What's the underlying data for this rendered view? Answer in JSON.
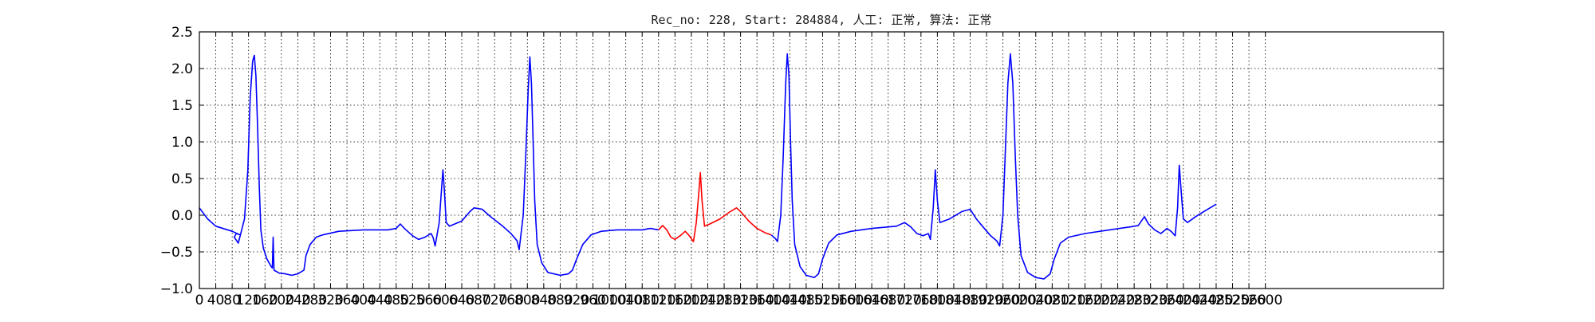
{
  "chart_data": {
    "type": "line",
    "title": "Rec_no: 228, Start: 284884, 人工: 正常, 算法: 正常",
    "xlabel": "",
    "ylabel": "",
    "xlim": [
      0,
      3000
    ],
    "ylim": [
      -1.0,
      2.5
    ],
    "grid": true,
    "y_ticks": [
      -1.0,
      -0.5,
      0.0,
      0.5,
      1.0,
      1.5,
      2.0,
      2.5
    ],
    "y_tick_labels": [
      "−1.0",
      "−0.5",
      "0.0",
      "0.5",
      "1.0",
      "1.5",
      "2.0",
      "2.5"
    ],
    "x_ticks": [
      0,
      40,
      80,
      120,
      160,
      200,
      240,
      280,
      320,
      360,
      400,
      440,
      480,
      520,
      560,
      600,
      640,
      680,
      720,
      760,
      800,
      840,
      880,
      920,
      960,
      1000,
      1040,
      1080,
      1120,
      1160,
      1200,
      1240,
      1280,
      1320,
      1360,
      1400,
      1440,
      1480,
      1520,
      1560,
      1600,
      1640,
      1680,
      1720,
      1760,
      1800,
      1840,
      1880,
      1920,
      1960,
      2000,
      2040,
      2080,
      2120,
      2160,
      2200,
      2240,
      2280,
      2320,
      2360,
      2400,
      2440,
      2480,
      2520,
      2560,
      2600
    ],
    "x_tick_labels": [
      "0",
      "40",
      "80",
      "120",
      "160",
      "200",
      "240",
      "280",
      "320",
      "360",
      "400",
      "440",
      "480",
      "520",
      "560",
      "600",
      "640",
      "680",
      "720",
      "760",
      "800",
      "840",
      "880",
      "920",
      "960",
      "1000",
      "1040",
      "1080",
      "1120",
      "1160",
      "1200",
      "1240",
      "1280",
      "1320",
      "1360",
      "1400",
      "1440",
      "1480",
      "1520",
      "1560",
      "1600",
      "1640",
      "1680",
      "1720",
      "1760",
      "1800",
      "1840",
      "1880",
      "1920",
      "1960",
      "2000",
      "2040",
      "2080",
      "2120",
      "2160",
      "2200",
      "2240",
      "2280",
      "2320",
      "2360",
      "2400",
      "2440",
      "2480",
      "2520",
      "2560",
      "2600"
    ],
    "series": [
      {
        "color": "#0000ff",
        "points": [
          [
            0,
            0.1
          ],
          [
            20,
            -0.05
          ],
          [
            40,
            -0.15
          ],
          [
            80,
            -0.22
          ],
          [
            100,
            -0.27
          ],
          [
            90,
            -0.25
          ],
          [
            85,
            -0.3
          ],
          [
            95,
            -0.38
          ],
          [
            110,
            -0.05
          ],
          [
            118,
            0.6
          ],
          [
            124,
            1.6
          ],
          [
            130,
            2.1
          ],
          [
            134,
            2.18
          ],
          [
            138,
            1.9
          ],
          [
            142,
            1.2
          ],
          [
            146,
            0.4
          ],
          [
            150,
            -0.2
          ],
          [
            156,
            -0.45
          ],
          [
            165,
            -0.6
          ],
          [
            175,
            -0.7
          ],
          [
            178,
            -0.72
          ],
          [
            180,
            -0.3
          ],
          [
            182,
            -0.75
          ],
          [
            195,
            -0.79
          ],
          [
            210,
            -0.8
          ],
          [
            225,
            -0.82
          ],
          [
            240,
            -0.8
          ],
          [
            255,
            -0.75
          ],
          [
            260,
            -0.55
          ],
          [
            270,
            -0.4
          ],
          [
            285,
            -0.3
          ],
          [
            300,
            -0.27
          ],
          [
            340,
            -0.22
          ],
          [
            400,
            -0.2
          ],
          [
            460,
            -0.2
          ],
          [
            480,
            -0.18
          ],
          [
            490,
            -0.12
          ],
          [
            500,
            -0.18
          ],
          [
            520,
            -0.28
          ],
          [
            535,
            -0.33
          ],
          [
            550,
            -0.3
          ],
          [
            565,
            -0.25
          ],
          [
            570,
            -0.3
          ],
          [
            575,
            -0.42
          ],
          [
            585,
            -0.1
          ],
          [
            590,
            0.3
          ],
          [
            594,
            0.62
          ],
          [
            598,
            0.3
          ],
          [
            602,
            -0.1
          ],
          [
            610,
            -0.15
          ],
          [
            640,
            -0.08
          ],
          [
            660,
            0.05
          ],
          [
            670,
            0.1
          ],
          [
            690,
            0.08
          ],
          [
            710,
            -0.02
          ],
          [
            740,
            -0.15
          ],
          [
            760,
            -0.25
          ],
          [
            775,
            -0.35
          ],
          [
            780,
            -0.47
          ],
          [
            790,
            0.0
          ],
          [
            796,
            0.8
          ],
          [
            802,
            1.7
          ],
          [
            806,
            2.16
          ],
          [
            810,
            1.8
          ],
          [
            814,
            1.0
          ],
          [
            818,
            0.2
          ],
          [
            824,
            -0.4
          ],
          [
            835,
            -0.65
          ],
          [
            850,
            -0.78
          ],
          [
            880,
            -0.82
          ],
          [
            900,
            -0.8
          ],
          [
            910,
            -0.75
          ],
          [
            920,
            -0.6
          ],
          [
            935,
            -0.4
          ],
          [
            955,
            -0.27
          ],
          [
            980,
            -0.22
          ],
          [
            1020,
            -0.2
          ],
          [
            1080,
            -0.2
          ],
          [
            1100,
            -0.18
          ],
          [
            1120,
            -0.2
          ]
        ]
      },
      {
        "color": "#ff0000",
        "points": [
          [
            1120,
            -0.2
          ],
          [
            1130,
            -0.14
          ],
          [
            1140,
            -0.2
          ],
          [
            1150,
            -0.3
          ],
          [
            1160,
            -0.33
          ],
          [
            1175,
            -0.27
          ],
          [
            1185,
            -0.22
          ],
          [
            1195,
            -0.28
          ],
          [
            1205,
            -0.36
          ],
          [
            1212,
            -0.1
          ],
          [
            1218,
            0.3
          ],
          [
            1222,
            0.58
          ],
          [
            1226,
            0.2
          ],
          [
            1232,
            -0.15
          ],
          [
            1245,
            -0.12
          ],
          [
            1270,
            -0.05
          ],
          [
            1295,
            0.05
          ],
          [
            1310,
            0.1
          ],
          [
            1320,
            0.05
          ],
          [
            1340,
            -0.08
          ],
          [
            1360,
            -0.18
          ],
          [
            1380,
            -0.24
          ],
          [
            1395,
            -0.27
          ]
        ]
      },
      {
        "color": "#0000ff",
        "points": [
          [
            1395,
            -0.27
          ],
          [
            1405,
            -0.32
          ],
          [
            1410,
            -0.36
          ],
          [
            1418,
            0.0
          ],
          [
            1424,
            0.8
          ],
          [
            1430,
            1.8
          ],
          [
            1434,
            2.2
          ],
          [
            1438,
            1.9
          ],
          [
            1442,
            1.0
          ],
          [
            1446,
            0.2
          ],
          [
            1452,
            -0.4
          ],
          [
            1465,
            -0.7
          ],
          [
            1480,
            -0.82
          ],
          [
            1500,
            -0.85
          ],
          [
            1510,
            -0.8
          ],
          [
            1520,
            -0.6
          ],
          [
            1535,
            -0.38
          ],
          [
            1555,
            -0.27
          ],
          [
            1590,
            -0.22
          ],
          [
            1640,
            -0.18
          ],
          [
            1700,
            -0.15
          ],
          [
            1720,
            -0.1
          ],
          [
            1735,
            -0.16
          ],
          [
            1750,
            -0.25
          ],
          [
            1765,
            -0.28
          ],
          [
            1778,
            -0.25
          ],
          [
            1783,
            -0.33
          ],
          [
            1790,
            0.1
          ],
          [
            1795,
            0.62
          ],
          [
            1800,
            0.2
          ],
          [
            1806,
            -0.1
          ],
          [
            1830,
            -0.05
          ],
          [
            1860,
            0.05
          ],
          [
            1880,
            0.08
          ],
          [
            1895,
            -0.05
          ],
          [
            1910,
            -0.15
          ],
          [
            1930,
            -0.28
          ],
          [
            1945,
            -0.35
          ],
          [
            1952,
            -0.42
          ],
          [
            1960,
            0.0
          ],
          [
            1966,
            0.9
          ],
          [
            1972,
            1.8
          ],
          [
            1978,
            2.2
          ],
          [
            1984,
            1.8
          ],
          [
            1990,
            0.8
          ],
          [
            1996,
            0.0
          ],
          [
            2004,
            -0.55
          ],
          [
            2020,
            -0.78
          ],
          [
            2040,
            -0.85
          ],
          [
            2060,
            -0.87
          ],
          [
            2075,
            -0.8
          ],
          [
            2085,
            -0.6
          ],
          [
            2100,
            -0.38
          ],
          [
            2120,
            -0.3
          ],
          [
            2160,
            -0.25
          ],
          [
            2220,
            -0.2
          ],
          [
            2270,
            -0.16
          ],
          [
            2290,
            -0.14
          ],
          [
            2305,
            -0.02
          ],
          [
            2315,
            -0.12
          ],
          [
            2330,
            -0.2
          ],
          [
            2345,
            -0.25
          ],
          [
            2360,
            -0.18
          ],
          [
            2370,
            -0.22
          ],
          [
            2380,
            -0.28
          ],
          [
            2386,
            0.1
          ],
          [
            2390,
            0.68
          ],
          [
            2395,
            0.3
          ],
          [
            2400,
            -0.05
          ],
          [
            2410,
            -0.1
          ],
          [
            2430,
            -0.02
          ],
          [
            2450,
            0.05
          ],
          [
            2480,
            0.15
          ]
        ]
      }
    ]
  }
}
